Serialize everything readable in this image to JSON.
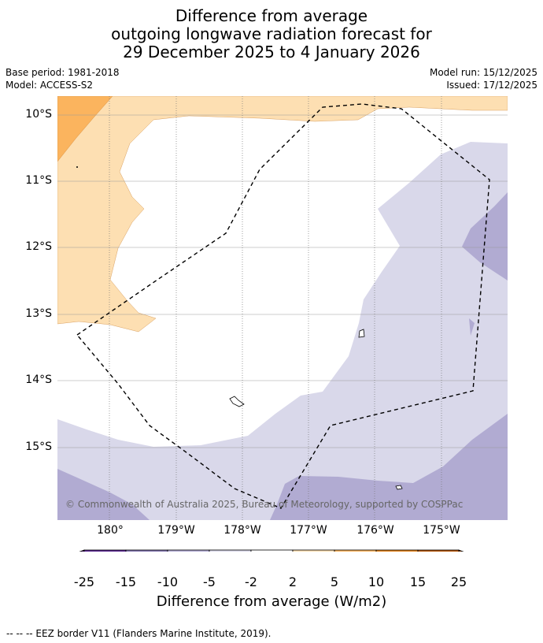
{
  "title": {
    "line1": "Difference from average",
    "line2": "outgoing longwave radiation forecast for",
    "line3": "29 December 2025 to 4 January 2026"
  },
  "meta": {
    "base_period": "Base period: 1981-2018",
    "model": "Model: ACCESS-S2",
    "model_run": "Model run: 15/12/2025",
    "issued": "Issued: 17/12/2025"
  },
  "map": {
    "lat_labels": [
      "10°S",
      "11°S",
      "12°S",
      "13°S",
      "14°S",
      "15°S"
    ],
    "lon_labels": [
      "180°",
      "179°W",
      "178°W",
      "177°W",
      "176°W",
      "175°W"
    ],
    "attribution": "© Commonwealth of Australia 2025, Bureau of Meteorology, supported by COSPPac"
  },
  "colorbar": {
    "levels": [
      "-25",
      "-15",
      "-10",
      "-5",
      "-2",
      "2",
      "5",
      "10",
      "15",
      "25"
    ],
    "colors": [
      "#3b0f5c",
      "#5a2790",
      "#8073ad",
      "#b1abd2",
      "#d9d8ea",
      "#ffffff",
      "#fddfb2",
      "#fbb45e",
      "#e2821a",
      "#b45506",
      "#7f3b08"
    ],
    "label": "Difference from average (W/m2)"
  },
  "footnote": "--  --  -- EEZ border V11 (Flanders Marine Institute, 2019)."
}
